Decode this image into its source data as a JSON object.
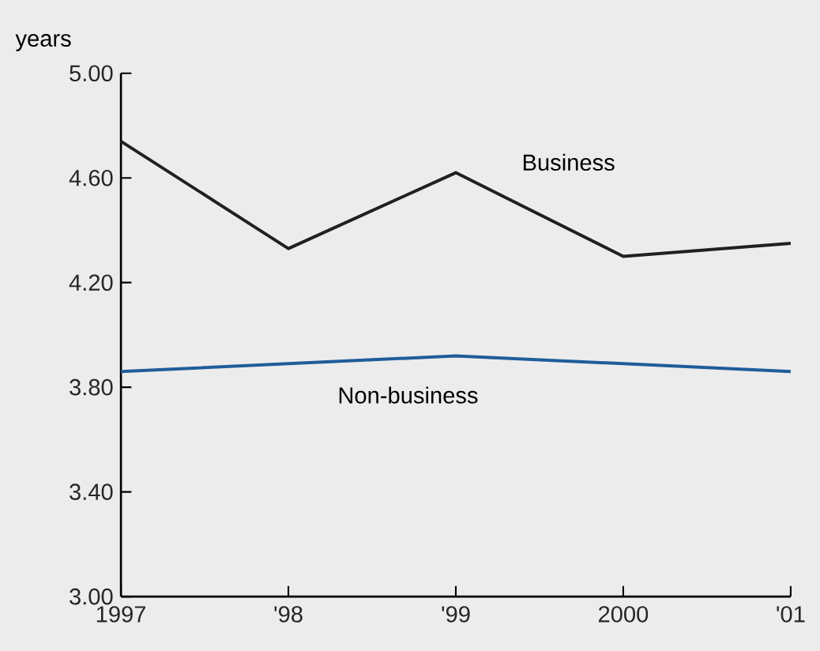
{
  "chart_data": {
    "type": "line",
    "ylabel": "years",
    "categories": [
      "1997",
      "'98",
      "'99",
      "2000",
      "'01"
    ],
    "series": [
      {
        "name": "Business",
        "color": "#231f20",
        "values": [
          4.74,
          4.33,
          4.62,
          4.3,
          4.35
        ]
      },
      {
        "name": "Non-business",
        "color": "#1f5c99",
        "values": [
          3.86,
          3.89,
          3.92,
          3.89,
          3.86
        ]
      }
    ],
    "ylim": [
      3.0,
      5.0
    ],
    "yticks": [
      {
        "value": 3.0,
        "label": "3.00"
      },
      {
        "value": 3.4,
        "label": "3.40"
      },
      {
        "value": 3.8,
        "label": "3.80"
      },
      {
        "value": 4.2,
        "label": "4.20"
      },
      {
        "value": 4.6,
        "label": "4.60"
      },
      {
        "value": 5.0,
        "label": "5.00"
      }
    ],
    "grid": false,
    "legend": false,
    "marker": "none",
    "line_style": "solid"
  }
}
